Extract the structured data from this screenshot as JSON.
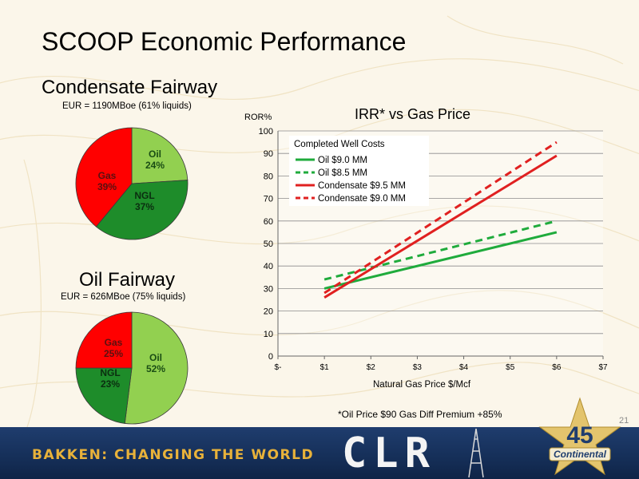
{
  "slide": {
    "title": "SCOOP Economic Performance",
    "slide_number": "21",
    "footnote": "*Oil Price $90   Gas Diff Premium +85%",
    "banner_text": "BAKKEN: CHANGING THE WORLD",
    "banner_logo": "CLR",
    "emblem_number": "45",
    "emblem_text": "Continental"
  },
  "condensate": {
    "title": "Condensate Fairway",
    "subtitle": "EUR = 1190MBoe (61% liquids)"
  },
  "oil_fairway": {
    "title": "Oil Fairway",
    "subtitle": "EUR = 626MBoe (75% liquids)"
  },
  "chart_data": [
    {
      "type": "pie",
      "title": "Condensate Fairway",
      "slices": [
        {
          "label": "Oil",
          "value": 24,
          "display": "24%",
          "color": "#92d050"
        },
        {
          "label": "NGL",
          "value": 37,
          "display": "37%",
          "color": "#1e8c2a"
        },
        {
          "label": "Gas",
          "value": 39,
          "display": "39%",
          "color": "#ff0000"
        }
      ]
    },
    {
      "type": "pie",
      "title": "Oil Fairway",
      "slices": [
        {
          "label": "Oil",
          "value": 52,
          "display": "52%",
          "color": "#92d050"
        },
        {
          "label": "NGL",
          "value": 23,
          "display": "23%",
          "color": "#1e8c2a"
        },
        {
          "label": "Gas",
          "value": 25,
          "display": "25%",
          "color": "#ff0000"
        }
      ]
    },
    {
      "type": "line",
      "title": "IRR* vs Gas Price",
      "ylabel": "ROR%",
      "xlabel": "Natural Gas Price $/Mcf",
      "x_ticks": [
        "$-",
        "$1",
        "$2",
        "$3",
        "$4",
        "$5",
        "$6",
        "$7"
      ],
      "xlim": [
        0,
        7
      ],
      "ylim": [
        0,
        100
      ],
      "y_ticks": [
        0,
        10,
        20,
        30,
        40,
        50,
        60,
        70,
        80,
        90,
        100
      ],
      "grid": "horizontal",
      "legend_title": "Completed Well Costs",
      "legend_position": "top-left",
      "series": [
        {
          "name": "Oil $9.0 MM",
          "color": "#1fab3c",
          "dash": false,
          "x": [
            1,
            6
          ],
          "y": [
            30,
            55
          ]
        },
        {
          "name": "Oil $8.5 MM",
          "color": "#1fab3c",
          "dash": true,
          "x": [
            1,
            6
          ],
          "y": [
            34,
            60
          ]
        },
        {
          "name": "Condensate $9.5 MM",
          "color": "#e02020",
          "dash": false,
          "x": [
            1,
            6
          ],
          "y": [
            26,
            89
          ]
        },
        {
          "name": "Condensate $9.0 MM",
          "color": "#e02020",
          "dash": true,
          "x": [
            1,
            6
          ],
          "y": [
            28,
            95
          ]
        }
      ]
    }
  ]
}
